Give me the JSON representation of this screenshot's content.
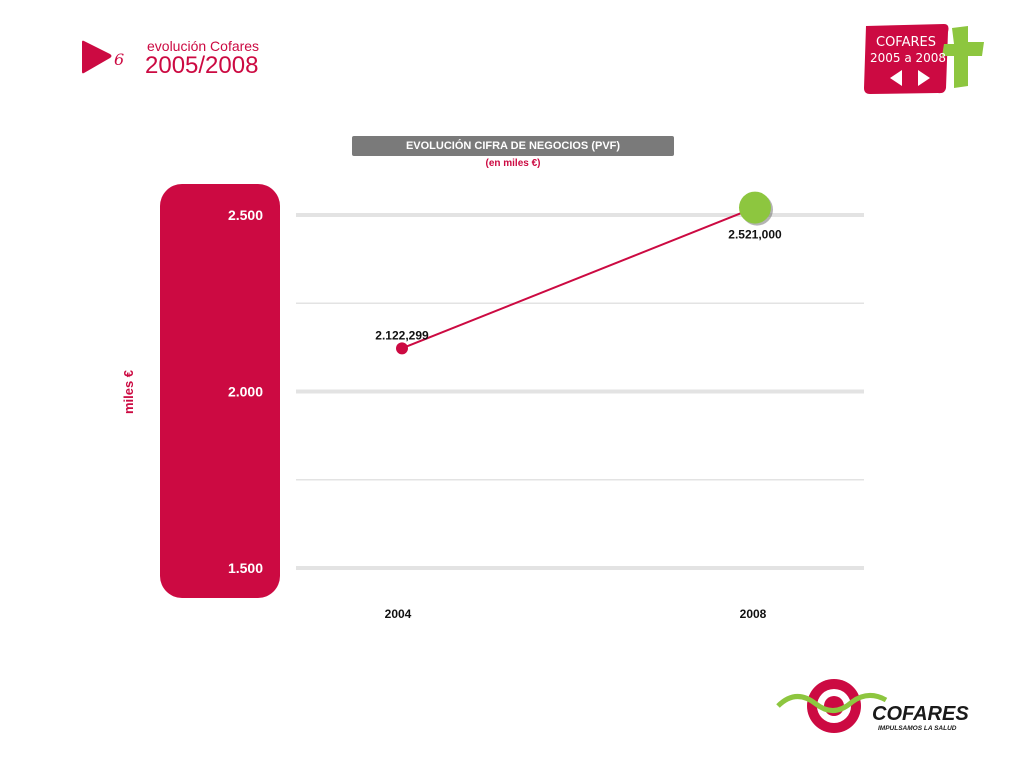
{
  "header": {
    "subtitle": "evolución Cofares",
    "years": "2005/2008"
  },
  "badge": {
    "line1": "COFARES",
    "line2": "2005 a 2008"
  },
  "chart_data": {
    "type": "line",
    "title": "EVOLUCIÓN CIFRA DE NEGOCIOS (PVF)",
    "subtitle": "(en miles €)",
    "ylabel": "miles €",
    "xlabel": "",
    "categories": [
      "2004",
      "2008"
    ],
    "series": [
      {
        "values": [
          2122.299,
          2521.0
        ],
        "labels": [
          "2.122,299",
          "2.521,000"
        ]
      }
    ],
    "ylim": [
      1500,
      2500
    ],
    "yticks": [
      {
        "value": 2500,
        "label": "2.500",
        "major": true
      },
      {
        "value": 2250,
        "label": "",
        "major": false
      },
      {
        "value": 2000,
        "label": "2.000",
        "major": true
      },
      {
        "value": 1750,
        "label": "",
        "major": false
      },
      {
        "value": 1500,
        "label": "1.500",
        "major": true
      }
    ],
    "grid": true,
    "colors": {
      "line": "#cc0a42",
      "point_start": "#cc0a42",
      "point_end": "#8dc63f",
      "axis_panel": "#cc0a42"
    }
  },
  "footer": {
    "brand": "COFARES",
    "tagline": "IMPULSAMOS LA SALUD"
  }
}
